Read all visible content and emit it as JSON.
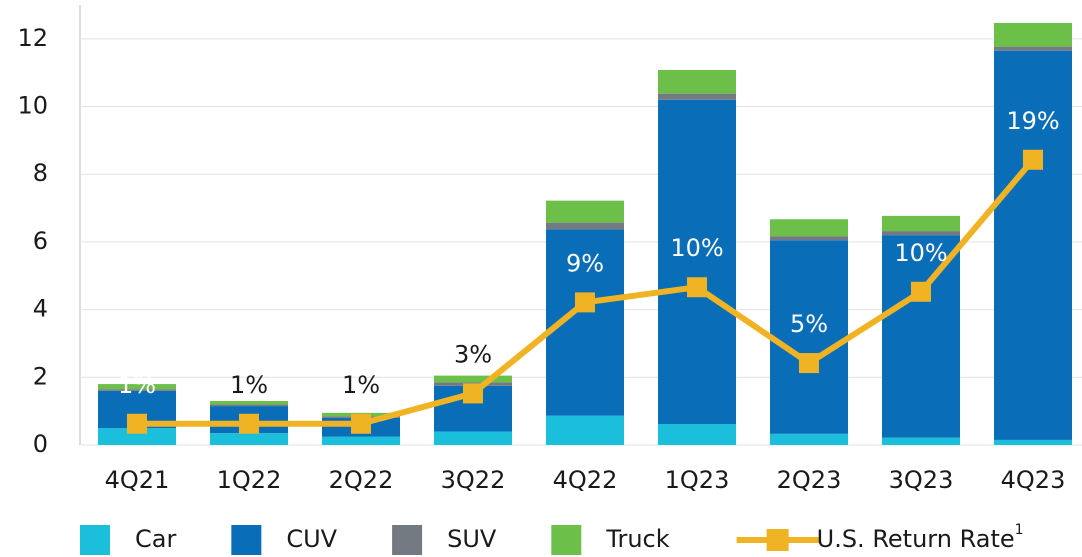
{
  "chart_data": {
    "type": "bar",
    "stacked": true,
    "categories": [
      "4Q21",
      "1Q22",
      "2Q22",
      "3Q22",
      "4Q22",
      "1Q23",
      "2Q23",
      "3Q23",
      "4Q23"
    ],
    "series": [
      {
        "name": "Car",
        "color": "#1bbfdc",
        "values": [
          0.5,
          0.35,
          0.25,
          0.4,
          0.87,
          0.62,
          0.33,
          0.22,
          0.15
        ]
      },
      {
        "name": "CUV",
        "color": "#0a6db8",
        "values": [
          1.1,
          0.8,
          0.55,
          1.35,
          5.5,
          9.58,
          5.72,
          5.98,
          11.5
        ]
      },
      {
        "name": "SUV",
        "color": "#747a81",
        "values": [
          0.05,
          0.05,
          0.05,
          0.1,
          0.2,
          0.18,
          0.12,
          0.12,
          0.12
        ]
      },
      {
        "name": "Truck",
        "color": "#6cc04a",
        "values": [
          0.15,
          0.1,
          0.1,
          0.2,
          0.65,
          0.7,
          0.5,
          0.45,
          0.7
        ]
      },
      {
        "name": "U.S. Return Rate",
        "footnote": "1",
        "type": "line",
        "axis": "y2",
        "color": "#f0b323",
        "values": [
          1.4,
          1.4,
          1.4,
          3.4,
          9.4,
          10.4,
          5.4,
          10.1,
          18.8
        ],
        "value_labels": [
          "1%",
          "1%",
          "1%",
          "3%",
          "9%",
          "10%",
          "5%",
          "10%",
          "19%"
        ]
      }
    ],
    "ylim": [
      0,
      13
    ],
    "yticks": [
      0,
      2,
      4,
      6,
      8,
      10,
      12
    ],
    "y2lim": [
      0,
      29
    ],
    "grid": true,
    "legend": "bottom"
  }
}
